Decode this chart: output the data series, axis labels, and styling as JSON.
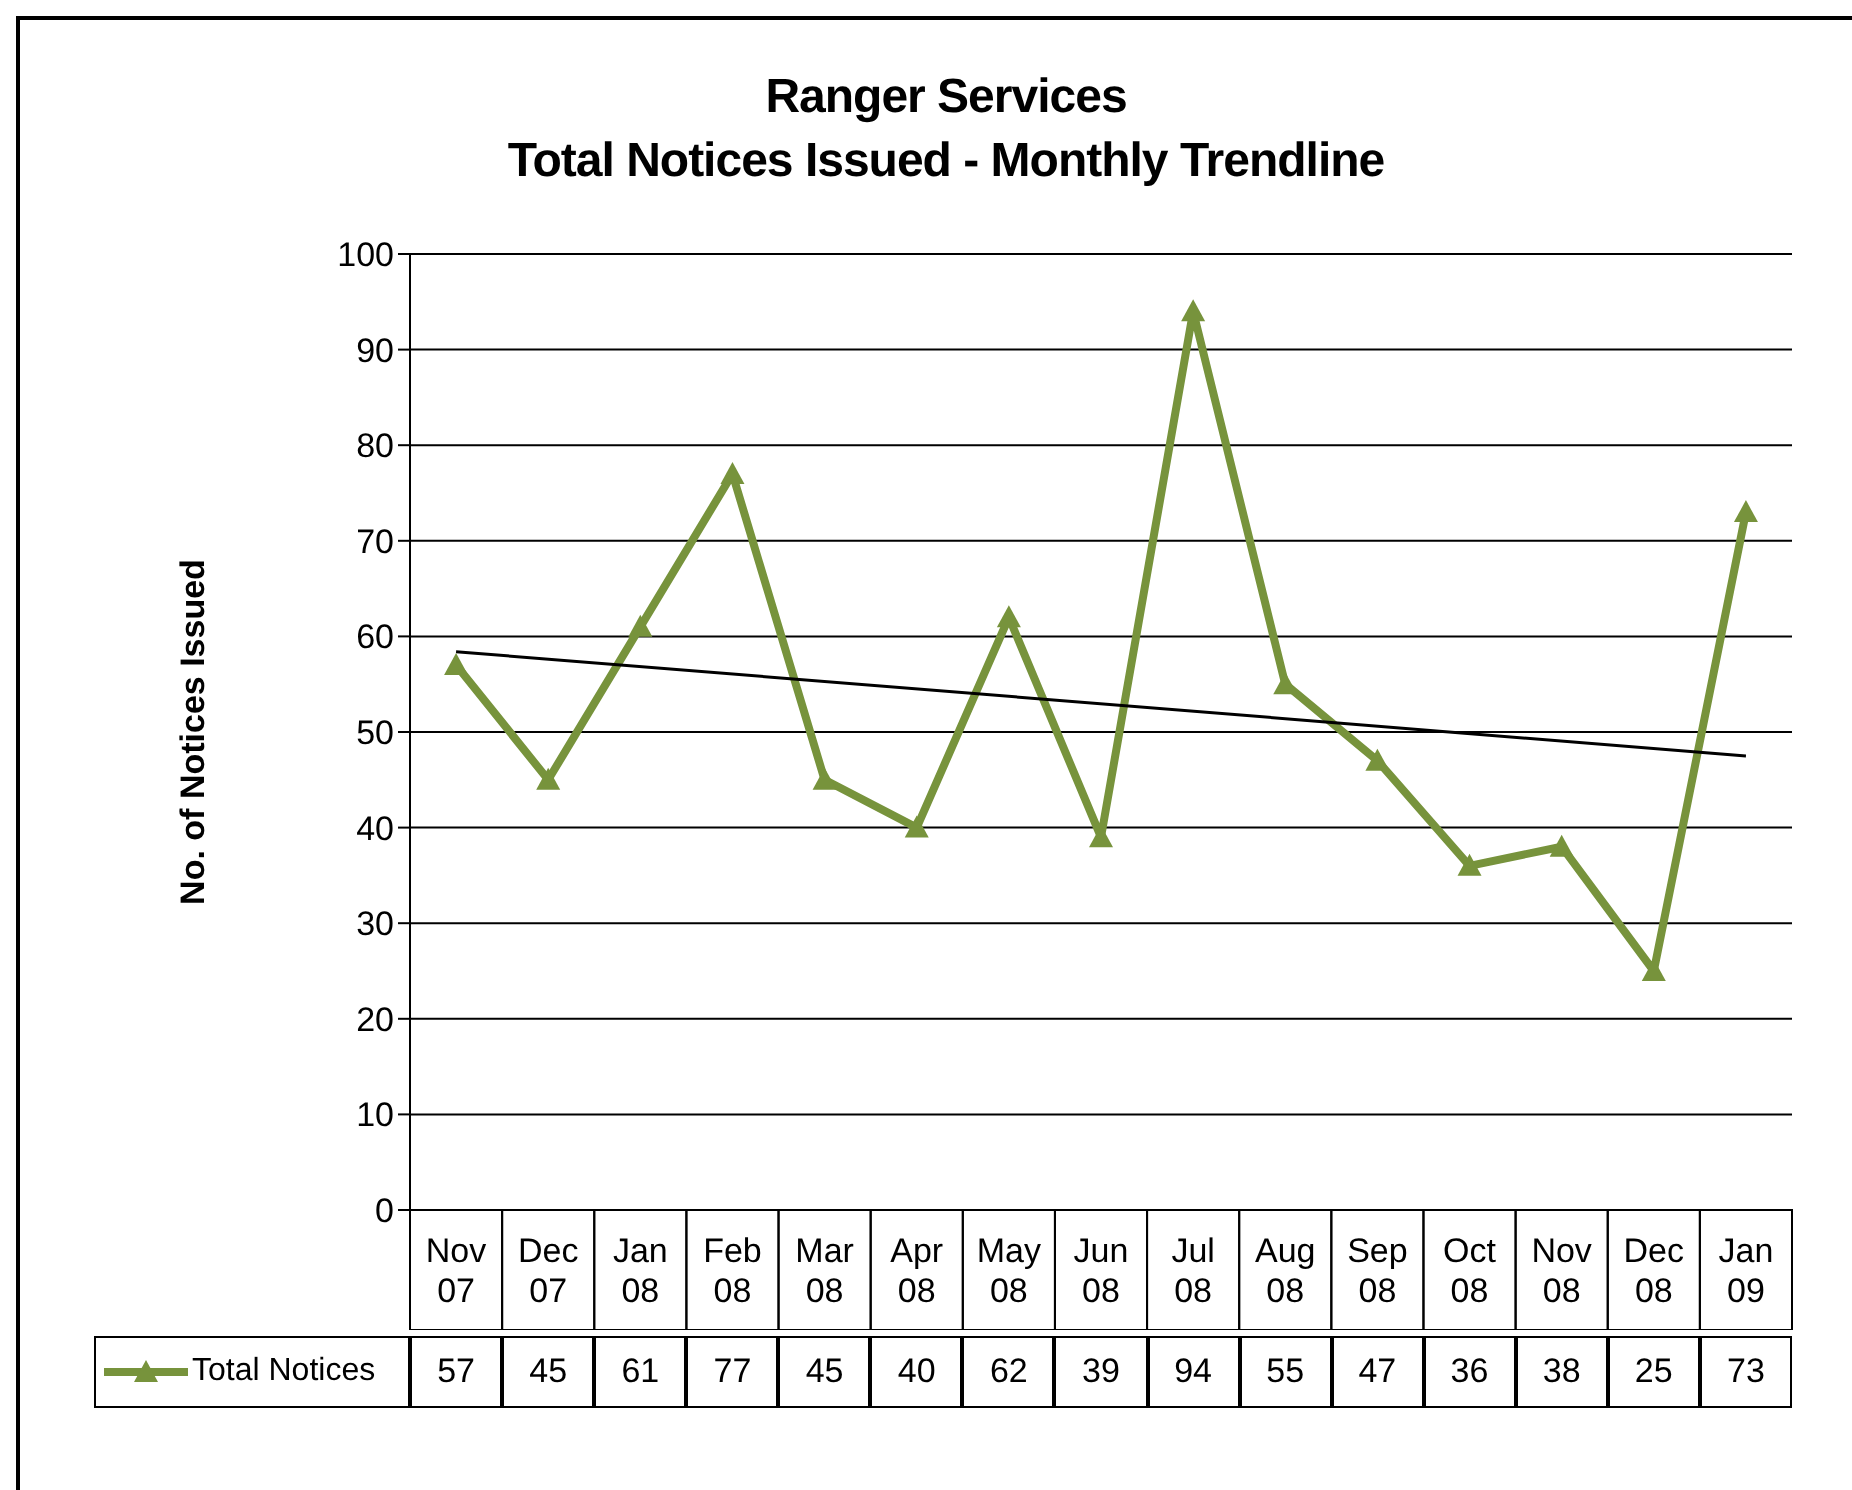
{
  "chart_data": {
    "type": "line",
    "title": "Ranger Services\nTotal Notices Issued - Monthly Trendline",
    "ylabel": "No. of Notices Issued",
    "categories": [
      "Nov 07",
      "Dec 07",
      "Jan 08",
      "Feb 08",
      "Mar 08",
      "Apr 08",
      "May 08",
      "Jun 08",
      "Jul 08",
      "Aug 08",
      "Sep 08",
      "Oct 08",
      "Nov 08",
      "Dec 08",
      "Jan 09"
    ],
    "series": [
      {
        "name": "Total Notices",
        "color": "#77933c",
        "values": [
          57,
          45,
          61,
          77,
          45,
          40,
          62,
          39,
          94,
          55,
          47,
          36,
          38,
          25,
          73
        ],
        "value_labels": [
          "57",
          "45",
          "61",
          "77",
          "45",
          "40",
          "62",
          "39",
          "94",
          "55",
          "47",
          "36",
          "38",
          "25",
          "73"
        ],
        "marker": "triangle"
      },
      {
        "type": "line",
        "color": "#000000",
        "values": [
          58.4,
          null,
          null,
          null,
          null,
          null,
          null,
          null,
          null,
          null,
          null,
          null,
          null,
          null,
          47.5
        ],
        "marker": "none"
      }
    ],
    "ylim": [
      0,
      100
    ],
    "yticks": [
      0,
      10,
      20,
      30,
      40,
      50,
      60,
      70,
      80,
      90,
      100
    ],
    "grid": "y",
    "legend": "bottom"
  }
}
